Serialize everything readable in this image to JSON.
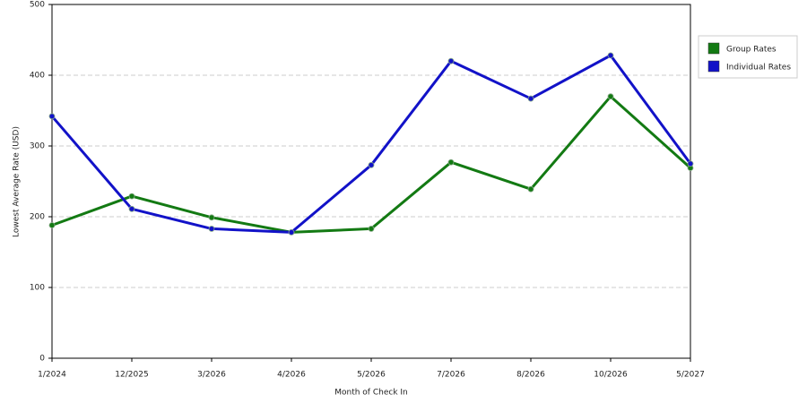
{
  "chart_data": {
    "type": "line",
    "x_label": "Month of Check In",
    "y_label": "Lowest Average Rate (USD)",
    "categories": [
      "1/2024",
      "12/2025",
      "3/2026",
      "4/2026",
      "5/2026",
      "7/2026",
      "8/2026",
      "10/2026",
      "5/2027"
    ],
    "series": [
      {
        "name": "Group Rates",
        "color": "#137a13",
        "values": [
          188,
          229,
          199,
          178,
          183,
          277,
          239,
          370,
          269
        ]
      },
      {
        "name": "Individual Rates",
        "color": "#1212c8",
        "values": [
          342,
          211,
          183,
          178,
          273,
          420,
          367,
          428,
          275
        ]
      }
    ],
    "ylim": [
      0,
      500
    ],
    "yticks": [
      0,
      100,
      200,
      300,
      400,
      500
    ],
    "grid": true,
    "legend": "right"
  }
}
